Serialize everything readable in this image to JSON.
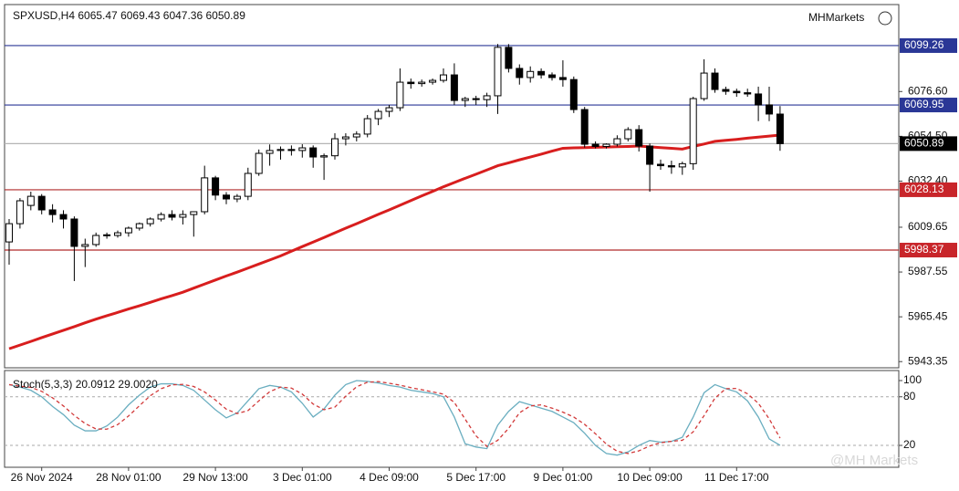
{
  "chart_data": [
    {
      "type": "candlestick",
      "title": "SPXUSD,H4  6065.47 6069.43 6047.36 6050.89",
      "brand": "MHMarkets",
      "watermark": "@MH Markets",
      "categories": [
        null,
        null,
        null,
        "26 Nov 2024",
        null,
        null,
        null,
        null,
        null,
        null,
        null,
        "28 Nov 01:00",
        null,
        null,
        null,
        null,
        null,
        null,
        null,
        "29 Nov 13:00",
        null,
        null,
        null,
        null,
        null,
        null,
        null,
        "3 Dec 01:00",
        null,
        null,
        null,
        null,
        null,
        null,
        null,
        "4 Dec 09:00",
        null,
        null,
        null,
        null,
        null,
        null,
        null,
        "5 Dec 17:00",
        null,
        null,
        null,
        null,
        null,
        null,
        null,
        "9 Dec 01:00",
        null,
        null,
        null,
        null,
        null,
        null,
        null,
        "10 Dec 09:00",
        null,
        null,
        null,
        null,
        null,
        null,
        null,
        "11 Dec 17:00",
        null,
        null,
        null,
        null
      ],
      "open": [
        6002.4,
        6011.4,
        6020.4,
        6024.9,
        6018.2,
        6015.9,
        6013.7,
        6000.2,
        6001.1,
        6005.6,
        6005.6,
        6006.9,
        6009.2,
        6011.4,
        6013.7,
        6015.9,
        6014.6,
        6015.9,
        6017.3,
        6034.0,
        6025.5,
        6023.6,
        6024.9,
        6036.2,
        6046.1,
        6047.5,
        6048.0,
        6047.5,
        6048.8,
        6044.3,
        6044.9,
        6053.3,
        6054.2,
        6055.6,
        6063.2,
        6066.8,
        6068.6,
        6081.2,
        6080.5,
        6081.2,
        6082.1,
        6084.8,
        6072.2,
        6073.1,
        6072.6,
        6074.5,
        6098.4,
        6088.0,
        6083.5,
        6086.5,
        6084.8,
        6083.5,
        6082.5,
        6067.7,
        6050.6,
        6049.5,
        6050.6,
        6053.3,
        6057.8,
        6049.7,
        6040.7,
        6040.0,
        6039.4,
        6041.0,
        6073.1,
        6085.7,
        6077.6,
        6076.7,
        6076.0,
        6075.4,
        6070.0,
        6065.47
      ],
      "high": [
        6013.7,
        6024.0,
        6027.2,
        6026.0,
        6021.0,
        6018.0,
        6015.0,
        6004.0,
        6007.0,
        6007.0,
        6008.0,
        6010.0,
        6012.0,
        6014.5,
        6017.0,
        6018.0,
        6018.0,
        6017.5,
        6040.0,
        6035.0,
        6027.0,
        6026.0,
        6039.0,
        6048.0,
        6050.5,
        6049.5,
        6050.0,
        6050.6,
        6050.0,
        6046.0,
        6056.0,
        6056.0,
        6057.0,
        6065.0,
        6068.0,
        6070.0,
        6088.0,
        6083.0,
        6082.5,
        6083.0,
        6088.0,
        6090.5,
        6074.0,
        6074.5,
        6076.0,
        6100.0,
        6100.0,
        6090.0,
        6089.0,
        6088.0,
        6086.0,
        6092.0,
        6084.0,
        6069.0,
        6052.0,
        6051.0,
        6055.0,
        6059.0,
        6060.0,
        6051.0,
        6043.0,
        6042.5,
        6042.0,
        6074.0,
        6092.5,
        6088.0,
        6079.0,
        6078.0,
        6078.0,
        6079.0,
        6079.0,
        6069.43
      ],
      "low": [
        5991.2,
        6009.0,
        6018.0,
        6016.0,
        6012.0,
        6009.0,
        5983.1,
        5990.0,
        6000.0,
        6004.0,
        6004.5,
        6005.0,
        6008.0,
        6010.0,
        6012.5,
        6013.0,
        6011.0,
        6005.0,
        6016.0,
        6023.0,
        6021.0,
        6022.0,
        6023.0,
        6035.0,
        6040.0,
        6043.0,
        6045.0,
        6044.0,
        6039.0,
        6033.0,
        6043.0,
        6050.0,
        6052.0,
        6054.0,
        6060.0,
        6064.0,
        6067.0,
        6078.0,
        6079.0,
        6080.0,
        6081.0,
        6070.0,
        6069.0,
        6070.0,
        6069.0,
        6065.5,
        6086.0,
        6080.0,
        6081.0,
        6083.0,
        6082.0,
        6079.0,
        6066.0,
        6049.0,
        6048.5,
        6048.5,
        6049.5,
        6052.0,
        6047.0,
        6027.2,
        6038.0,
        6036.0,
        6035.5,
        6038.0,
        6072.0,
        6076.0,
        6075.0,
        6074.0,
        6074.0,
        6062.0,
        6062.0,
        6047.36
      ],
      "close": [
        6011.4,
        6022.7,
        6024.9,
        6018.2,
        6015.9,
        6013.7,
        6000.2,
        6001.1,
        6005.6,
        6005.9,
        6006.9,
        6009.2,
        6011.4,
        6013.7,
        6015.9,
        6014.6,
        6015.9,
        6017.3,
        6034.0,
        6025.5,
        6023.6,
        6024.9,
        6036.2,
        6046.1,
        6047.5,
        6048.0,
        6047.5,
        6048.8,
        6044.3,
        6044.9,
        6053.3,
        6054.2,
        6055.6,
        6063.2,
        6066.8,
        6068.6,
        6081.2,
        6080.5,
        6081.2,
        6082.1,
        6084.8,
        6072.2,
        6073.1,
        6072.6,
        6074.5,
        6098.4,
        6088.0,
        6083.5,
        6086.5,
        6084.8,
        6083.5,
        6082.5,
        6067.7,
        6050.6,
        6049.5,
        6050.6,
        6053.3,
        6057.8,
        6049.7,
        6040.7,
        6040.0,
        6039.4,
        6041.0,
        6073.1,
        6085.7,
        6077.6,
        6076.7,
        6076.0,
        6075.4,
        6070.0,
        6065.5,
        6050.89
      ],
      "up_color": "#ffffff",
      "down_color": "#000000",
      "wick_color": "#000000",
      "overlays": [
        {
          "color": "#d81e1e",
          "values": [
            5949.7,
            5951.5,
            5953.3,
            5955.2,
            5957.0,
            5958.8,
            5960.6,
            5962.5,
            5964.3,
            5966.0,
            5967.6,
            5969.3,
            5970.9,
            5972.6,
            5974.3,
            5975.9,
            5977.6,
            5979.6,
            5981.6,
            5983.6,
            5985.6,
            5987.5,
            5989.5,
            5991.5,
            5993.5,
            5995.5,
            5997.8,
            6000.1,
            6002.3,
            6004.6,
            6006.9,
            6009.2,
            6011.4,
            6013.7,
            6016.0,
            6018.2,
            6020.5,
            6022.8,
            6025.1,
            6027.3,
            6029.6,
            6031.7,
            6033.8,
            6035.8,
            6037.9,
            6040.0,
            6041.4,
            6042.9,
            6044.3,
            6045.7,
            6047.2,
            6048.6,
            6048.8,
            6048.9,
            6049.1,
            6049.2,
            6049.4,
            6049.5,
            6049.7,
            6049.3,
            6048.9,
            6048.6,
            6048.2,
            6049.5,
            6050.7,
            6052.0,
            6052.5,
            6053.0,
            6053.6,
            6054.1,
            6054.6,
            6055.1
          ]
        }
      ],
      "levels": [
        {
          "value": 6099.26,
          "color": "#2a3796",
          "label_color": "#2a3796"
        },
        {
          "value": 6069.95,
          "color": "#2a3796",
          "label_color": "#2a3796"
        },
        {
          "value": 6050.89,
          "color": "#b5b5b5",
          "label_color": "#000000"
        },
        {
          "value": 6028.13,
          "color": "#b02a2a",
          "label_color": "#c8252a"
        },
        {
          "value": 5998.37,
          "color": "#b02a2a",
          "label_color": "#c8252a"
        }
      ],
      "ylim": [
        5940.3,
        6119.5
      ],
      "yticks": [
        {
          "value": 6076.6,
          "label": "6076.60"
        },
        {
          "value": 6054.5,
          "label": "6054.50"
        },
        {
          "value": 6032.4,
          "label": "6032.40"
        },
        6009.65,
        5987.55,
        5965.45,
        5943.35
      ]
    },
    {
      "type": "line",
      "title": "Stoch(5,3,3) 20.0912 29.0020",
      "series": [
        {
          "color": "#6aaec0",
          "dashed": false,
          "values": [
            95,
            92,
            88,
            80,
            68,
            58,
            45,
            38,
            38,
            44,
            55,
            70,
            82,
            92,
            96,
            96,
            94,
            88,
            76,
            64,
            54,
            60,
            75,
            90,
            94,
            92,
            86,
            72,
            55,
            65,
            82,
            95,
            100,
            99,
            97,
            94,
            92,
            88,
            86,
            84,
            80,
            55,
            22,
            18,
            16,
            45,
            62,
            74,
            70,
            66,
            62,
            55,
            48,
            35,
            20,
            10,
            8,
            12,
            20,
            26,
            24,
            25,
            30,
            55,
            85,
            95,
            90,
            86,
            75,
            55,
            28,
            20.0912
          ]
        },
        {
          "color": "#d23a3a",
          "dashed": true,
          "values": [
            95,
            93,
            91.7,
            86.7,
            78.7,
            68.7,
            57,
            47,
            40.3,
            40,
            45.7,
            56.3,
            69,
            81.3,
            90,
            94.7,
            95.3,
            92.7,
            86,
            76,
            64.7,
            59.3,
            63,
            75,
            86.3,
            92,
            90.7,
            83.3,
            71,
            64,
            67.3,
            80.7,
            92.3,
            98,
            98.7,
            96.7,
            94.3,
            91.3,
            88.7,
            86,
            83.3,
            73,
            52.3,
            31.7,
            18.7,
            26.3,
            41,
            60.3,
            68.7,
            70,
            66,
            61,
            55,
            46,
            34.3,
            21.7,
            12.7,
            10,
            13.3,
            19.3,
            23.3,
            25,
            26.3,
            36.7,
            56.7,
            78.3,
            90,
            90.3,
            83.7,
            72,
            52.7,
            29.002
          ]
        }
      ],
      "ylim": [
        -7,
        112.4
      ],
      "yticks": [
        100,
        80,
        20
      ],
      "grid_ticks": [
        80,
        20
      ]
    }
  ]
}
